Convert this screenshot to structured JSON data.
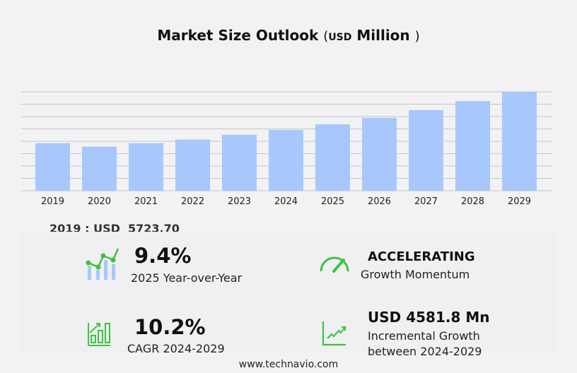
{
  "title": {
    "main": "Market Size Outlook",
    "open": "(",
    "unit": "USD",
    "unit_word": "Million",
    "close": ")"
  },
  "chart_data": {
    "type": "bar",
    "title": "Market Size Outlook (USD Million)",
    "categories": [
      "2019",
      "2020",
      "2021",
      "2022",
      "2023",
      "2024",
      "2025",
      "2026",
      "2027",
      "2028",
      "2029"
    ],
    "values": [
      5723.7,
      5300,
      5720,
      6150,
      6730,
      7300,
      7990,
      8760,
      9690,
      10780,
      11880
    ],
    "ylim": [
      0,
      11880
    ],
    "grid": true,
    "bar_color": "#a8c8fd"
  },
  "base_year": {
    "label": "2019 : USD",
    "value": "5723.70"
  },
  "stats": {
    "yoy": {
      "value": "9.4%",
      "label": "2025 Year-over-Year"
    },
    "momentum": {
      "value": "ACCELERATING",
      "label": "Growth Momentum"
    },
    "cagr": {
      "value": "10.2%",
      "label": "CAGR 2024-2029"
    },
    "incremental": {
      "value": "USD 4581.8 Mn",
      "label1": "Incremental Growth",
      "label2": "between 2024-2029"
    }
  },
  "footer": "www.technavio.com",
  "colors": {
    "accent": "#3cc43c",
    "bar": "#a8c8fd"
  }
}
